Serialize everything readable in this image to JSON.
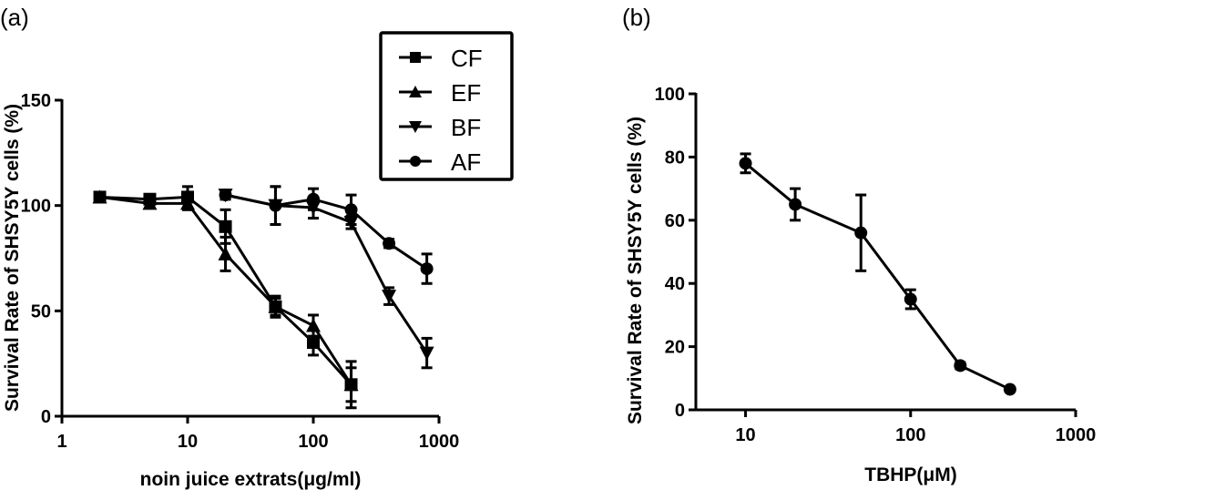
{
  "chart_data": [
    {
      "type": "line",
      "panel_label": "(a)",
      "title": "",
      "xlabel": "noin juice extrats(μg/ml)",
      "ylabel": "Survival Rate of SHSY5Y cells (%)",
      "xscale": "log",
      "xlim": [
        1,
        1000
      ],
      "ylim": [
        0,
        150
      ],
      "xticks": [
        "1",
        "10",
        "100",
        "1000"
      ],
      "yticks": [
        "0",
        "50",
        "100",
        "150"
      ],
      "legend_position": "top-center",
      "grid": false,
      "series": [
        {
          "name": "CF",
          "marker": "square",
          "x": [
            2,
            5,
            10,
            20,
            50,
            100,
            200
          ],
          "y": [
            104,
            103,
            104,
            90,
            52,
            35,
            15
          ],
          "err": [
            2,
            2,
            5,
            8,
            5,
            6,
            11
          ]
        },
        {
          "name": "EF",
          "marker": "triangle-up",
          "x": [
            2,
            5,
            10,
            20,
            50,
            100,
            200
          ],
          "y": [
            104,
            101,
            101,
            77,
            52,
            43,
            15
          ],
          "err": [
            2,
            2,
            3,
            8,
            4,
            5,
            8
          ]
        },
        {
          "name": "BF",
          "marker": "triangle-down",
          "x": [
            20,
            50,
            100,
            200,
            400,
            800
          ],
          "y": [
            105,
            100,
            99,
            92,
            57,
            30
          ],
          "err": [
            2,
            9,
            5,
            3,
            4,
            7
          ]
        },
        {
          "name": "AF",
          "marker": "circle",
          "x": [
            20,
            50,
            100,
            200,
            400,
            800
          ],
          "y": [
            105,
            100,
            103,
            98,
            82,
            70
          ],
          "err": [
            2,
            9,
            5,
            7,
            2,
            7
          ]
        }
      ]
    },
    {
      "type": "line",
      "panel_label": "(b)",
      "title": "",
      "xlabel": "TBHP(μM)",
      "ylabel": "Survival Rate of SHSY5Y cells (%)",
      "xscale": "log",
      "xlim": [
        5,
        1000
      ],
      "ylim": [
        0,
        100
      ],
      "xticks": [
        "10",
        "100",
        "1000"
      ],
      "yticks": [
        "0",
        "20",
        "40",
        "60",
        "80",
        "100"
      ],
      "grid": false,
      "series": [
        {
          "name": "TBHP",
          "marker": "circle",
          "x": [
            10,
            20,
            50,
            100,
            200,
            400
          ],
          "y": [
            78,
            65,
            56,
            35,
            14,
            6.5
          ],
          "err": [
            3,
            5,
            12,
            3,
            1,
            0.5
          ]
        }
      ]
    }
  ]
}
